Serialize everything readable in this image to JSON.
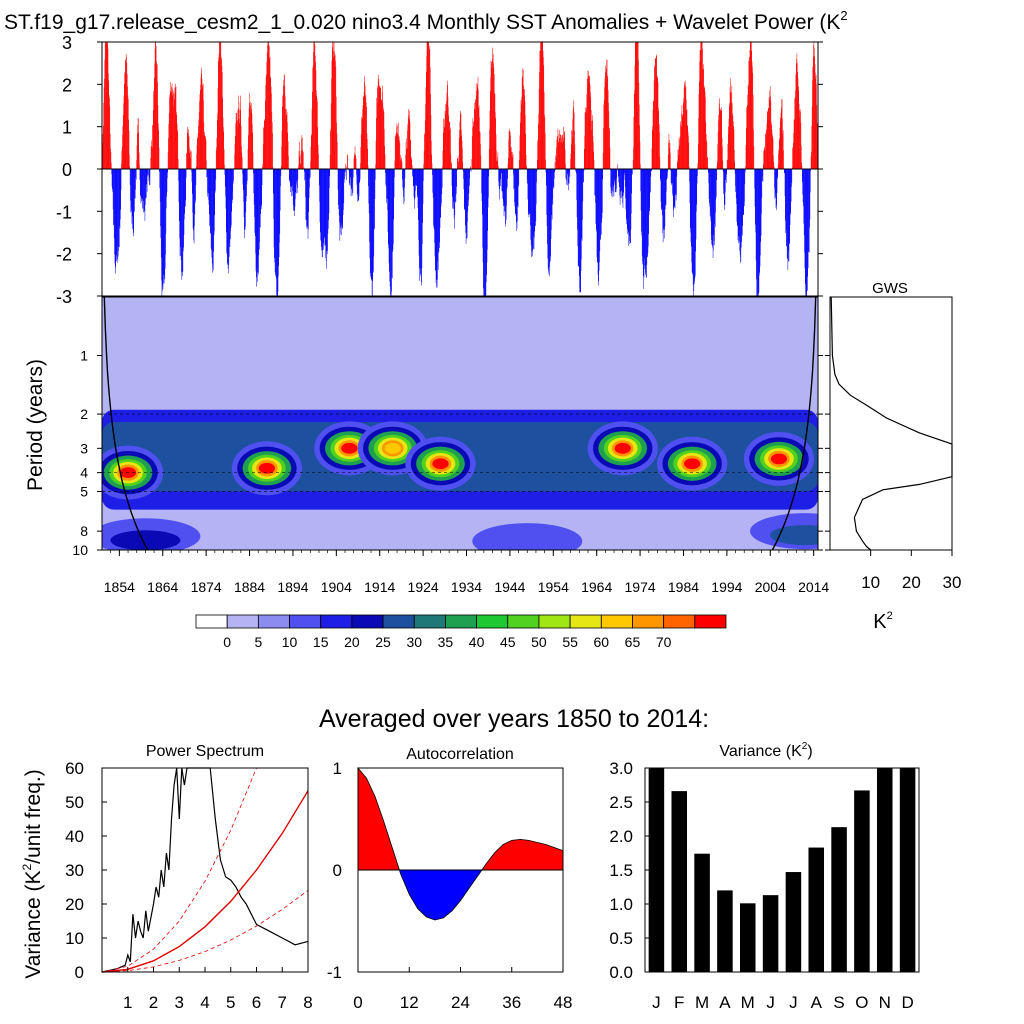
{
  "title": "ST.f19_g17.release_cesm2_1_0.020 nino3.4 Monthly SST Anomalies + Wavelet Power (K",
  "title_sup": "2",
  "colors": {
    "positive": "#ff0000",
    "negative": "#0000ff",
    "coi": "#000000",
    "bar": "#000000",
    "palette": [
      "#ffffff",
      "#b4b4f5",
      "#8c8cf0",
      "#5050f0",
      "#1e1ee6",
      "#0a0ab4",
      "#1e50a0",
      "#1e7878",
      "#1ea050",
      "#1ec832",
      "#50d21e",
      "#a0e614",
      "#e6e614",
      "#ffc800",
      "#ff9600",
      "#ff6400",
      "#ff0000"
    ]
  },
  "chart_data": [
    {
      "type": "bar",
      "name": "sst-anomaly-timeseries",
      "xlim": [
        1850,
        2015
      ],
      "ylim": [
        -3,
        3
      ],
      "yticks": [
        "3",
        "2",
        "1",
        "0",
        "-1",
        "-2",
        "-3"
      ]
    },
    {
      "type": "heatmap",
      "name": "wavelet-power",
      "ylabel": "Period (years)",
      "yticks": [
        "1",
        "2",
        "3",
        "4",
        "5",
        "8",
        "10"
      ],
      "xticks": [
        "1854",
        "1864",
        "1874",
        "1884",
        "1894",
        "1904",
        "1914",
        "1924",
        "1934",
        "1944",
        "1954",
        "1964",
        "1974",
        "1984",
        "1994",
        "2004",
        "2014"
      ],
      "colorbar_labels": [
        "0",
        "5",
        "10",
        "15",
        "20",
        "25",
        "30",
        "35",
        "40",
        "45",
        "50",
        "55",
        "60",
        "65",
        "70"
      ],
      "high_power_blobs": [
        {
          "year": 1856,
          "period": 4.0,
          "level": 16
        },
        {
          "year": 1888,
          "period": 3.8,
          "level": 16
        },
        {
          "year": 1907,
          "period": 3.0,
          "level": 16
        },
        {
          "year": 1917,
          "period": 3.0,
          "level": 13
        },
        {
          "year": 1928,
          "period": 3.6,
          "level": 16
        },
        {
          "year": 1970,
          "period": 3.0,
          "level": 16
        },
        {
          "year": 1986,
          "period": 3.6,
          "level": 16
        },
        {
          "year": 2006,
          "period": 3.4,
          "level": 16
        }
      ]
    },
    {
      "type": "line",
      "name": "global-wavelet-spectrum",
      "title": "GWS",
      "xlabel": "K",
      "xlabel_sup": "2",
      "xticks": [
        "10",
        "20",
        "30"
      ],
      "xlim": [
        0,
        30
      ],
      "x": [
        0.3,
        0.6,
        1.2,
        2.2,
        5.0,
        9.0,
        14.0,
        22.0,
        30.0,
        30.0,
        22.0,
        13.0,
        8.0,
        6.0,
        6.5,
        8.0,
        9.0,
        10.0
      ],
      "period": [
        0.5,
        1.0,
        1.25,
        1.4,
        1.6,
        1.8,
        2.1,
        2.5,
        2.85,
        4.2,
        4.6,
        4.9,
        5.5,
        6.8,
        8.0,
        9.0,
        9.6,
        10.0
      ]
    },
    {
      "type": "line",
      "name": "power-spectrum",
      "title": "Power Spectrum",
      "ylabel": "Variance (K",
      "ylabel_sup": "2",
      "ylabel_tail": "/unit freq.)",
      "xlim": [
        0,
        8
      ],
      "ylim": [
        0,
        60
      ],
      "xticks": [
        "1",
        "2",
        "3",
        "4",
        "5",
        "6",
        "7",
        "8"
      ],
      "yticks": [
        "0",
        "10",
        "20",
        "30",
        "40",
        "50",
        "60"
      ],
      "series": [
        {
          "values_x": [
            0.0,
            0.3,
            0.6,
            0.9,
            1.0,
            1.1,
            1.2,
            1.3,
            1.4,
            1.5,
            1.6,
            1.7,
            1.8,
            1.9,
            2.0,
            2.1,
            2.2,
            2.3,
            2.4,
            2.5,
            2.6,
            2.7,
            2.8,
            2.9,
            3.0,
            3.1,
            3.2,
            3.3,
            4.0,
            4.2,
            4.4,
            4.6,
            4.8,
            5.0,
            5.2,
            5.4,
            5.6,
            5.8,
            6.0,
            6.5,
            7.0,
            7.5,
            8.0
          ],
          "values": [
            0.0,
            0.5,
            1.0,
            2.0,
            5.0,
            3.0,
            17.0,
            10.0,
            15.0,
            12.0,
            10.0,
            18.0,
            12.0,
            16.0,
            20.0,
            25.0,
            22.0,
            30.0,
            25.0,
            35.0,
            30.0,
            45.0,
            55.0,
            60.0,
            45.0,
            60.0,
            55.0,
            60.0,
            60.0,
            60.0,
            45.0,
            33.0,
            28.0,
            27.0,
            25.0,
            22.0,
            20.0,
            17.0,
            14.0,
            12.0,
            10.0,
            8.0,
            9.0
          ]
        },
        {
          "values_x": [
            0.0,
            1.0,
            2.0,
            3.0,
            4.0,
            5.0,
            6.0,
            7.0,
            8.0
          ],
          "values": [
            0.0,
            0.8,
            3.3,
            7.5,
            13.3,
            20.8,
            30.0,
            40.8,
            53.3
          ]
        },
        {
          "values_x": [
            0.0,
            1.0,
            2.0,
            3.0,
            4.0,
            5.0,
            6.0,
            7.0,
            8.0
          ],
          "values": [
            0.0,
            0.4,
            1.5,
            3.4,
            6.0,
            9.4,
            13.5,
            18.4,
            24.0
          ]
        },
        {
          "values_x": [
            0.0,
            1.0,
            2.0,
            3.0,
            4.0,
            5.0,
            6.0
          ],
          "values": [
            0.0,
            1.7,
            6.7,
            15.0,
            26.7,
            41.7,
            60.0
          ]
        }
      ]
    },
    {
      "type": "area",
      "name": "autocorrelation",
      "title": "Autocorrelation",
      "xlim": [
        0,
        48
      ],
      "ylim": [
        -1,
        1
      ],
      "xticks": [
        "0",
        "12",
        "24",
        "36",
        "48"
      ],
      "yticks": [
        "1",
        "0",
        "-1"
      ],
      "x": [
        0,
        2,
        4,
        6,
        8,
        10,
        12,
        14,
        16,
        18,
        20,
        22,
        24,
        26,
        28,
        30,
        32,
        34,
        36,
        38,
        40,
        42,
        44,
        46,
        48
      ],
      "values": [
        1.0,
        0.9,
        0.72,
        0.48,
        0.22,
        -0.04,
        -0.24,
        -0.38,
        -0.46,
        -0.49,
        -0.47,
        -0.4,
        -0.3,
        -0.18,
        -0.06,
        0.06,
        0.17,
        0.25,
        0.29,
        0.3,
        0.29,
        0.27,
        0.25,
        0.22,
        0.19
      ]
    },
    {
      "type": "bar",
      "name": "monthly-variance",
      "title": "Variance (K",
      "title_sup": "2",
      "title_tail": ")",
      "ylim": [
        0,
        3
      ],
      "yticks": [
        "3.0",
        "2.5",
        "2.0",
        "1.5",
        "1.0",
        "0.5",
        "0.0"
      ],
      "categories": [
        "J",
        "F",
        "M",
        "A",
        "M",
        "J",
        "J",
        "A",
        "S",
        "O",
        "N",
        "D"
      ],
      "values": [
        3.0,
        2.66,
        1.74,
        1.2,
        1.01,
        1.13,
        1.47,
        1.83,
        2.13,
        2.67,
        3.0,
        3.0
      ]
    }
  ],
  "subtitle": "Averaged over years 1850 to 2014:"
}
